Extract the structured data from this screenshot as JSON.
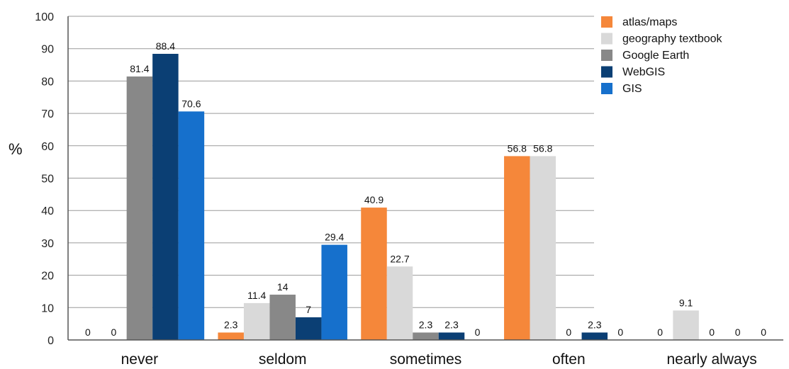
{
  "chart_data": {
    "type": "bar",
    "ylabel": "%",
    "ylim": [
      0,
      100
    ],
    "yticks": [
      0,
      10,
      20,
      30,
      40,
      50,
      60,
      70,
      80,
      90,
      100
    ],
    "grid": true,
    "legend_position": "top-right",
    "categories": [
      "never",
      "seldom",
      "sometimes",
      "often",
      "nearly always"
    ],
    "series": [
      {
        "name": "atlas/maps",
        "color": "#f5873a",
        "values": [
          0,
          2.3,
          40.9,
          56.8,
          0
        ]
      },
      {
        "name": "geography textbook",
        "color": "#d9d9d9",
        "values": [
          0,
          11.4,
          22.7,
          56.8,
          9.1
        ]
      },
      {
        "name": "Google Earth",
        "color": "#888888",
        "values": [
          81.4,
          14,
          2.3,
          0,
          0
        ]
      },
      {
        "name": "WebGIS",
        "color": "#0b3f74",
        "values": [
          88.4,
          7,
          2.3,
          2.3,
          0
        ]
      },
      {
        "name": "GIS",
        "color": "#1670cc",
        "values": [
          70.6,
          29.4,
          0,
          0,
          0
        ]
      }
    ]
  }
}
